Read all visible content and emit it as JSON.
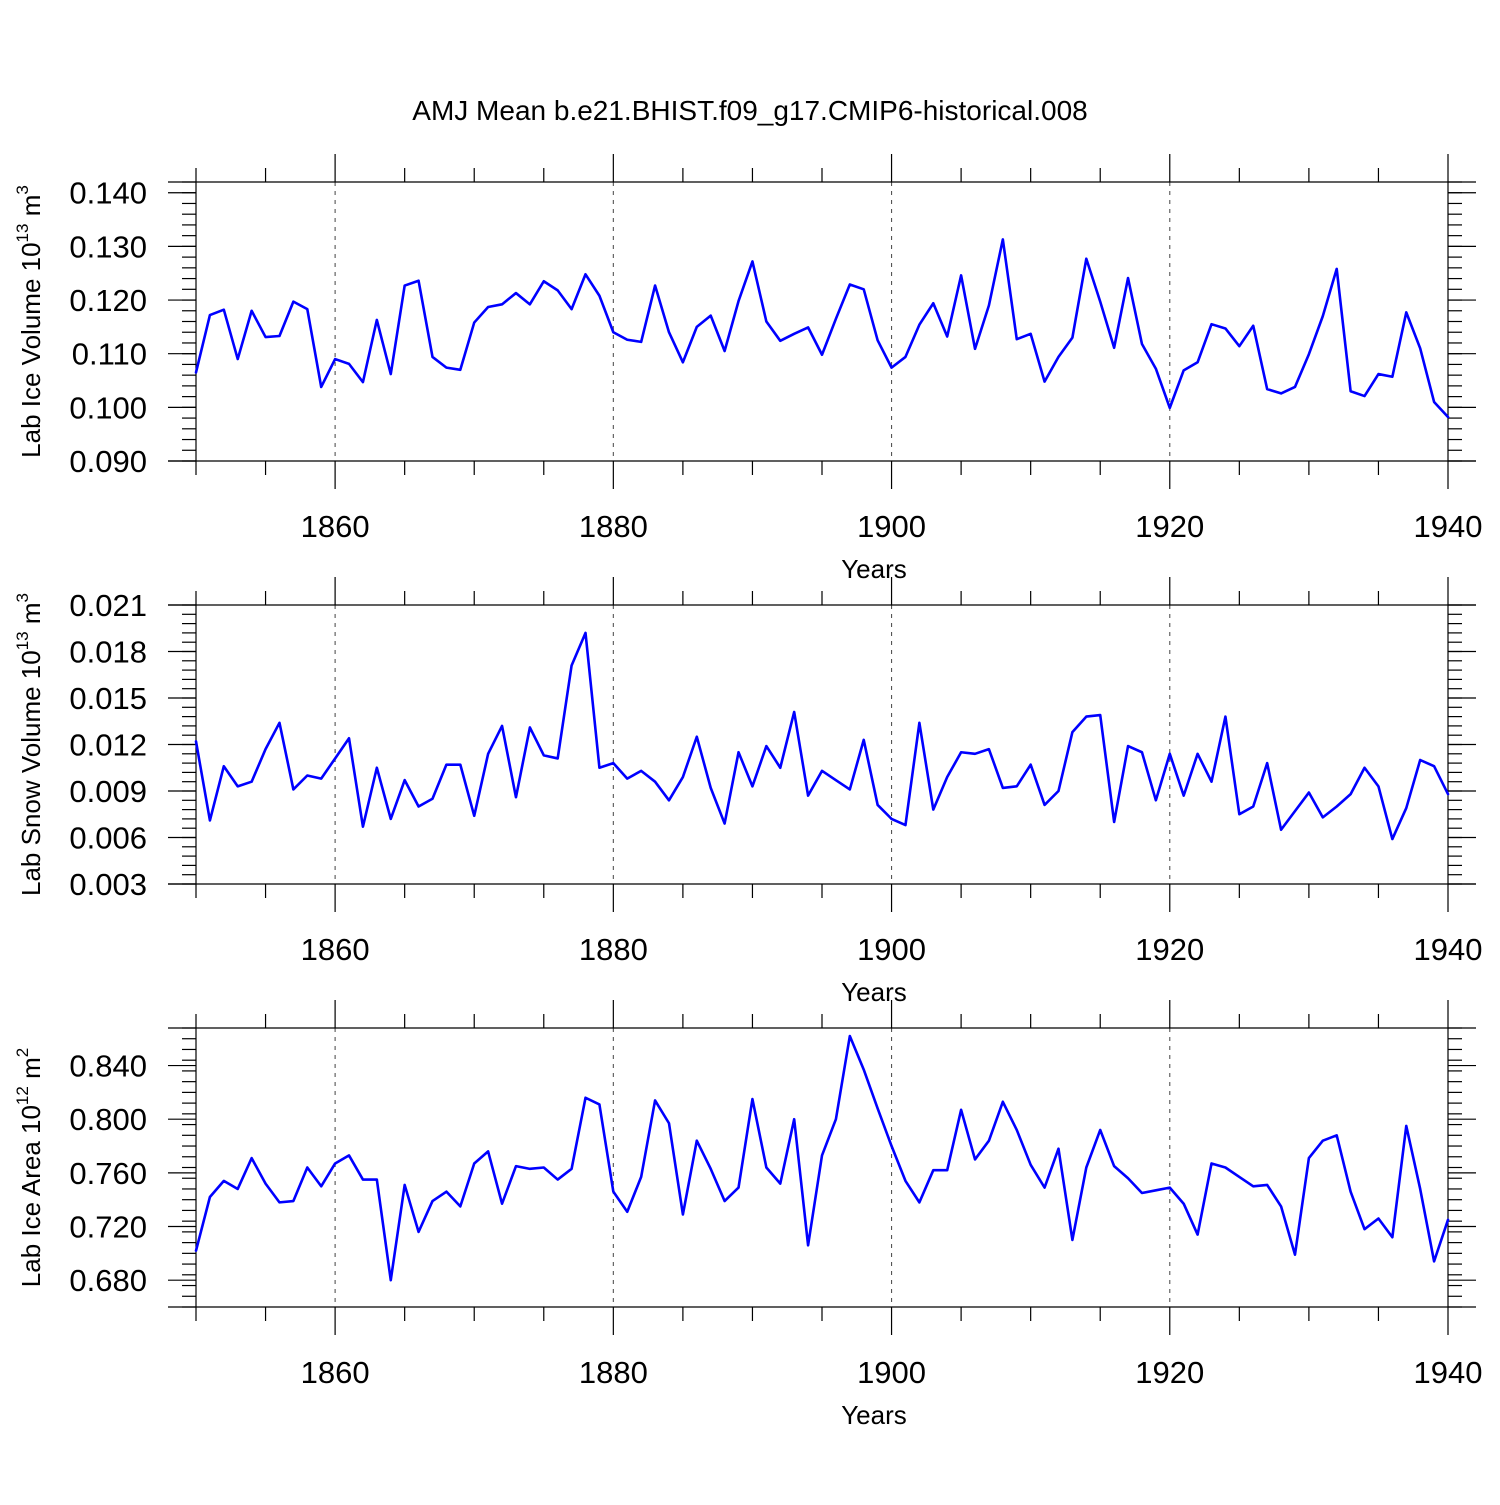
{
  "figure": {
    "title": "AMJ Mean b.e21.BHIST.f09_g17.CMIP6-historical.008",
    "line_color": "#0000ff"
  },
  "chart_data": [
    {
      "type": "line",
      "ylabel_main": "Lab Ice Volume 10",
      "ylabel_exp": "13",
      "ylabel_unit": " m",
      "ylabel_unit_exp": "3",
      "xlabel": "Years",
      "xlim": [
        1850,
        1940
      ],
      "ylim": [
        0.09,
        0.142
      ],
      "yticks": [
        0.09,
        0.1,
        0.11,
        0.12,
        0.13,
        0.14
      ],
      "ytick_labels": [
        "0.090",
        "0.100",
        "0.110",
        "0.120",
        "0.130",
        "0.140"
      ],
      "yminor_step": 0.002,
      "xticks": [
        1860,
        1880,
        1900,
        1920,
        1940
      ],
      "xtick_labels": [
        "1860",
        "1880",
        "1900",
        "1920",
        "1940"
      ],
      "gridlines_x": [
        1860,
        1880,
        1900,
        1920
      ],
      "series": [
        {
          "name": "Lab Ice Volume",
          "x_start": 1850,
          "values": [
            0.1065,
            0.1172,
            0.1182,
            0.109,
            0.118,
            0.1131,
            0.1133,
            0.1197,
            0.1183,
            0.1038,
            0.109,
            0.1081,
            0.1047,
            0.1163,
            0.1062,
            0.1227,
            0.1236,
            0.1094,
            0.1074,
            0.107,
            0.1158,
            0.1187,
            0.1192,
            0.1213,
            0.1192,
            0.1235,
            0.1218,
            0.1183,
            0.1248,
            0.1208,
            0.114,
            0.1126,
            0.1122,
            0.1227,
            0.114,
            0.1084,
            0.115,
            0.1171,
            0.1105,
            0.1198,
            0.1272,
            0.116,
            0.1124,
            0.1137,
            0.1149,
            0.1098,
            0.1165,
            0.1229,
            0.122,
            0.1125,
            0.1074,
            0.1094,
            0.1154,
            0.1194,
            0.1132,
            0.1246,
            0.1109,
            0.119,
            0.1313,
            0.1127,
            0.1137,
            0.1048,
            0.1094,
            0.113,
            0.1277,
            0.1197,
            0.1111,
            0.1241,
            0.1118,
            0.1072,
            0.0999,
            0.1069,
            0.1084,
            0.1155,
            0.1147,
            0.1114,
            0.1152,
            0.1034,
            0.1026,
            0.1038,
            0.1099,
            0.117,
            0.1258,
            0.103,
            0.1021,
            0.1062,
            0.1057,
            0.1177,
            0.111,
            0.101,
            0.0982
          ]
        }
      ]
    },
    {
      "type": "line",
      "ylabel_main": "Lab Snow Volume 10",
      "ylabel_exp": "13",
      "ylabel_unit": " m",
      "ylabel_unit_exp": "3",
      "xlabel": "Years",
      "xlim": [
        1850,
        1940
      ],
      "ylim": [
        0.003,
        0.021
      ],
      "yticks": [
        0.003,
        0.006,
        0.009,
        0.012,
        0.015,
        0.018,
        0.021
      ],
      "ytick_labels": [
        "0.003",
        "0.006",
        "0.009",
        "0.012",
        "0.015",
        "0.018",
        "0.021"
      ],
      "yminor_step": 0.0006,
      "xticks": [
        1860,
        1880,
        1900,
        1920,
        1940
      ],
      "xtick_labels": [
        "1860",
        "1880",
        "1900",
        "1920",
        "1940"
      ],
      "gridlines_x": [
        1860,
        1880,
        1900,
        1920
      ],
      "series": [
        {
          "name": "Lab Snow Volume",
          "x_start": 1850,
          "values": [
            0.0122,
            0.0071,
            0.0106,
            0.0093,
            0.0096,
            0.0117,
            0.0134,
            0.0091,
            0.01,
            0.0098,
            0.0111,
            0.0124,
            0.0067,
            0.0105,
            0.0072,
            0.0097,
            0.008,
            0.0085,
            0.0107,
            0.0107,
            0.0074,
            0.0114,
            0.0132,
            0.0086,
            0.0131,
            0.0113,
            0.0111,
            0.0171,
            0.0192,
            0.0105,
            0.0108,
            0.0098,
            0.0103,
            0.0096,
            0.0084,
            0.0099,
            0.0125,
            0.0092,
            0.0069,
            0.0115,
            0.0093,
            0.0119,
            0.0105,
            0.0141,
            0.0087,
            0.0103,
            0.0097,
            0.0091,
            0.0123,
            0.0081,
            0.0072,
            0.0068,
            0.0134,
            0.0078,
            0.0099,
            0.0115,
            0.0114,
            0.0117,
            0.0092,
            0.0093,
            0.0107,
            0.0081,
            0.009,
            0.0128,
            0.0138,
            0.0139,
            0.007,
            0.0119,
            0.0115,
            0.0084,
            0.0114,
            0.0087,
            0.0114,
            0.0096,
            0.0138,
            0.0075,
            0.008,
            0.0108,
            0.0065,
            0.0077,
            0.0089,
            0.0073,
            0.008,
            0.0088,
            0.0105,
            0.0093,
            0.0059,
            0.0079,
            0.011,
            0.0106,
            0.0088
          ]
        }
      ]
    },
    {
      "type": "line",
      "ylabel_main": "Lab Ice Area 10",
      "ylabel_exp": "12",
      "ylabel_unit": " m",
      "ylabel_unit_exp": "2",
      "xlabel": "Years",
      "xlim": [
        1850,
        1940
      ],
      "ylim": [
        0.66,
        0.868
      ],
      "yticks": [
        0.68,
        0.72,
        0.76,
        0.8,
        0.84
      ],
      "ytick_labels": [
        "0.680",
        "0.720",
        "0.760",
        "0.800",
        "0.840"
      ],
      "yminor_step": 0.008,
      "xticks": [
        1860,
        1880,
        1900,
        1920,
        1940
      ],
      "xtick_labels": [
        "1860",
        "1880",
        "1900",
        "1920",
        "1940"
      ],
      "gridlines_x": [
        1860,
        1880,
        1900,
        1920
      ],
      "series": [
        {
          "name": "Lab Ice Area",
          "x_start": 1850,
          "values": [
            0.702,
            0.742,
            0.754,
            0.748,
            0.771,
            0.752,
            0.738,
            0.739,
            0.764,
            0.75,
            0.767,
            0.773,
            0.755,
            0.755,
            0.68,
            0.751,
            0.716,
            0.739,
            0.746,
            0.735,
            0.767,
            0.776,
            0.737,
            0.765,
            0.763,
            0.764,
            0.755,
            0.763,
            0.816,
            0.811,
            0.746,
            0.731,
            0.757,
            0.814,
            0.797,
            0.729,
            0.784,
            0.763,
            0.739,
            0.749,
            0.815,
            0.764,
            0.752,
            0.8,
            0.706,
            0.773,
            0.8,
            0.862,
            0.837,
            0.808,
            0.78,
            0.754,
            0.738,
            0.762,
            0.762,
            0.807,
            0.77,
            0.784,
            0.813,
            0.792,
            0.766,
            0.749,
            0.778,
            0.71,
            0.764,
            0.792,
            0.765,
            0.756,
            0.745,
            0.747,
            0.749,
            0.737,
            0.714,
            0.767,
            0.764,
            0.757,
            0.75,
            0.751,
            0.735,
            0.699,
            0.771,
            0.784,
            0.788,
            0.746,
            0.718,
            0.726,
            0.712,
            0.795,
            0.748,
            0.694,
            0.725
          ]
        }
      ]
    }
  ]
}
